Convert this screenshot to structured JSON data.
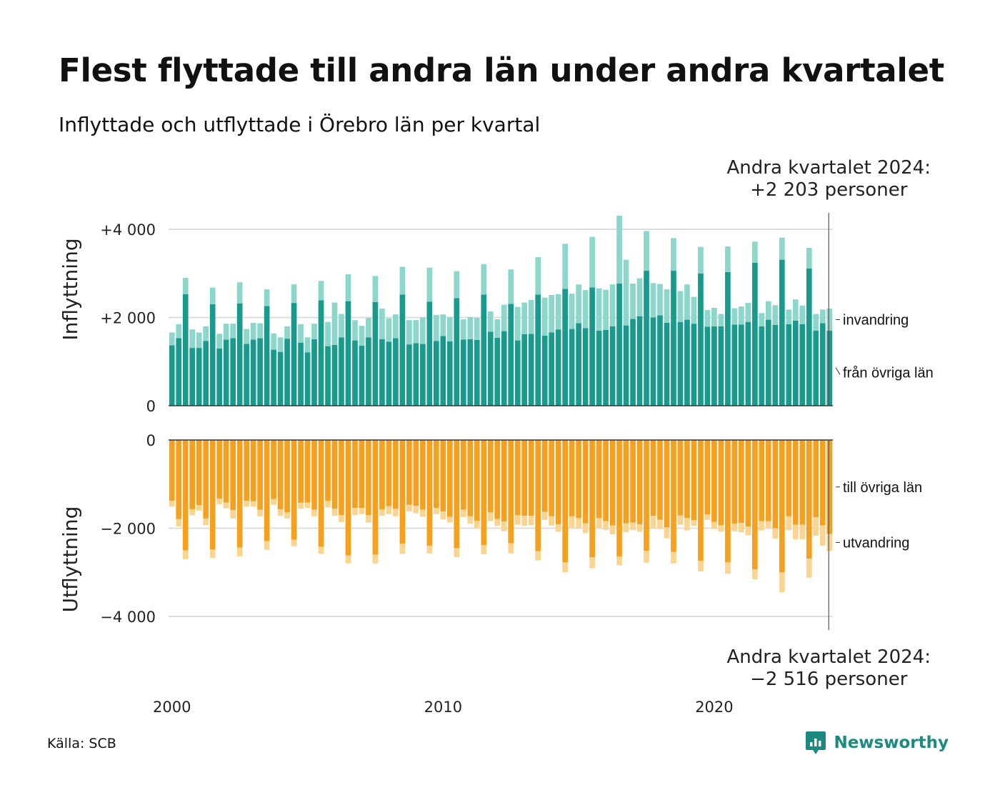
{
  "title": "Flest flyttade till andra län under andra kvartalet",
  "subtitle": "Inflyttade och utflyttade i Örebro län per kvartal",
  "source": "Källa: SCB",
  "brand": "Newsworthy",
  "colors": {
    "inflow_domestic": "#1a9a8d",
    "inflow_immigration": "#8dd6cb",
    "outflow_domestic": "#f5a11f",
    "outflow_emigration": "#fad591",
    "grid": "#dddddd",
    "baseline": "#333333"
  },
  "chart_data": [
    {
      "type": "bar",
      "stacked": true,
      "panel": "top",
      "ylabel": "Inflyttning",
      "ylim": [
        0,
        4300
      ],
      "yticks": [
        0,
        2000,
        4000
      ],
      "ytick_labels": [
        "0",
        "+2 000",
        "+4 000"
      ],
      "x_labels": [
        "2000",
        "2010",
        "2020"
      ],
      "first_period": "2000 Q1",
      "last_period": "2024 Q2",
      "annotation": "Andra kvartalet 2024:\n+2 203 personer",
      "series": [
        {
          "name": "från övriga län",
          "values": [
            1370,
            1530,
            2530,
            1310,
            1310,
            1470,
            2300,
            1300,
            1500,
            1530,
            2320,
            1400,
            1500,
            1530,
            2260,
            1270,
            1220,
            1520,
            2330,
            1430,
            1210,
            1510,
            2390,
            1350,
            1380,
            1550,
            2370,
            1480,
            1360,
            1550,
            2350,
            1510,
            1450,
            1530,
            2520,
            1390,
            1420,
            1400,
            2360,
            1470,
            1580,
            1460,
            2440,
            1500,
            1510,
            1490,
            2520,
            1680,
            1540,
            1690,
            2310,
            1480,
            1620,
            1630,
            2520,
            1590,
            1660,
            1730,
            2650,
            1740,
            1870,
            1760,
            2680,
            1700,
            1720,
            1800,
            2770,
            1820,
            1970,
            2030,
            3060,
            2000,
            2050,
            1880,
            3060,
            1900,
            1950,
            1860,
            3000,
            1790,
            1800,
            1800,
            3030,
            1840,
            1840,
            1900,
            3240,
            1800,
            1950,
            1830,
            3310,
            1850,
            1930,
            1850,
            3110,
            1700,
            1870,
            1700
          ],
          "color": "#1a9a8d"
        },
        {
          "name": "invandring",
          "values": [
            290,
            320,
            370,
            420,
            350,
            330,
            380,
            330,
            360,
            330,
            480,
            340,
            380,
            340,
            380,
            370,
            330,
            280,
            420,
            420,
            340,
            350,
            440,
            550,
            960,
            530,
            610,
            460,
            450,
            440,
            590,
            690,
            530,
            540,
            630,
            550,
            520,
            600,
            770,
            590,
            490,
            550,
            610,
            460,
            500,
            500,
            690,
            460,
            420,
            600,
            780,
            760,
            720,
            770,
            850,
            860,
            850,
            800,
            1020,
            800,
            880,
            860,
            1150,
            960,
            910,
            950,
            1540,
            1490,
            800,
            860,
            900,
            780,
            710,
            760,
            740,
            700,
            800,
            610,
            600,
            380,
            420,
            280,
            580,
            370,
            410,
            430,
            480,
            300,
            420,
            450,
            500,
            330,
            480,
            420,
            470,
            380,
            310,
            503
          ],
          "color": "#8dd6cb"
        }
      ]
    },
    {
      "type": "bar",
      "stacked": true,
      "panel": "bottom",
      "ylabel": "Utflyttning",
      "ylim": [
        -4300,
        0
      ],
      "yticks": [
        0,
        -2000,
        -4000
      ],
      "ytick_labels": [
        "0",
        "−2 000",
        "−4 000"
      ],
      "x_labels": [
        "2000",
        "2010",
        "2020"
      ],
      "first_period": "2000 Q1",
      "last_period": "2024 Q2",
      "annotation": "Andra kvartalet 2024:\n−2 516 personer",
      "series": [
        {
          "name": "till övriga län",
          "values": [
            -1380,
            -1790,
            -2500,
            -1570,
            -1480,
            -1780,
            -2480,
            -1330,
            -1420,
            -1590,
            -2440,
            -1380,
            -1390,
            -1580,
            -2290,
            -1340,
            -1570,
            -1640,
            -2260,
            -1420,
            -1420,
            -1580,
            -2420,
            -1380,
            -1560,
            -1700,
            -2620,
            -1540,
            -1540,
            -1700,
            -2600,
            -1570,
            -1500,
            -1560,
            -2350,
            -1470,
            -1490,
            -1580,
            -2400,
            -1540,
            -1620,
            -1740,
            -2450,
            -1580,
            -1730,
            -1830,
            -2380,
            -1640,
            -1790,
            -1850,
            -2340,
            -1700,
            -1720,
            -1720,
            -2520,
            -1630,
            -1730,
            -1910,
            -2770,
            -1730,
            -1770,
            -1890,
            -2660,
            -1770,
            -1840,
            -1940,
            -2640,
            -1890,
            -1870,
            -1910,
            -2510,
            -1720,
            -1810,
            -1980,
            -2540,
            -1710,
            -1770,
            -1820,
            -2740,
            -1690,
            -1860,
            -1930,
            -2770,
            -1900,
            -1880,
            -1960,
            -2930,
            -1840,
            -1840,
            -2000,
            -3000,
            -1730,
            -1920,
            -1920,
            -2690,
            -1750,
            -1940,
            -2130
          ],
          "color": "#f5a11f"
        },
        {
          "name": "utvandring",
          "values": [
            -130,
            -170,
            -200,
            -140,
            -120,
            -150,
            -190,
            -130,
            -130,
            -190,
            -200,
            -130,
            -120,
            -150,
            -200,
            -130,
            -150,
            -140,
            -150,
            -140,
            -120,
            -150,
            -160,
            -150,
            -160,
            -160,
            -180,
            -160,
            -140,
            -170,
            -200,
            -150,
            -180,
            -170,
            -230,
            -150,
            -170,
            -160,
            -170,
            -140,
            -180,
            -130,
            -210,
            -170,
            -170,
            -170,
            -210,
            -200,
            -160,
            -220,
            -230,
            -220,
            -230,
            -210,
            -210,
            -180,
            -210,
            -170,
            -230,
            -260,
            -230,
            -220,
            -250,
            -220,
            -200,
            -200,
            -200,
            -200,
            -170,
            -170,
            -270,
            -280,
            -210,
            -250,
            -260,
            -210,
            -280,
            -130,
            -240,
            -120,
            -160,
            -150,
            -260,
            -170,
            -210,
            -200,
            -230,
            -210,
            -150,
            -240,
            -450,
            -310,
            -330,
            -330,
            -430,
            -420,
            -460,
            -386
          ],
          "color": "#fad591"
        }
      ]
    }
  ]
}
